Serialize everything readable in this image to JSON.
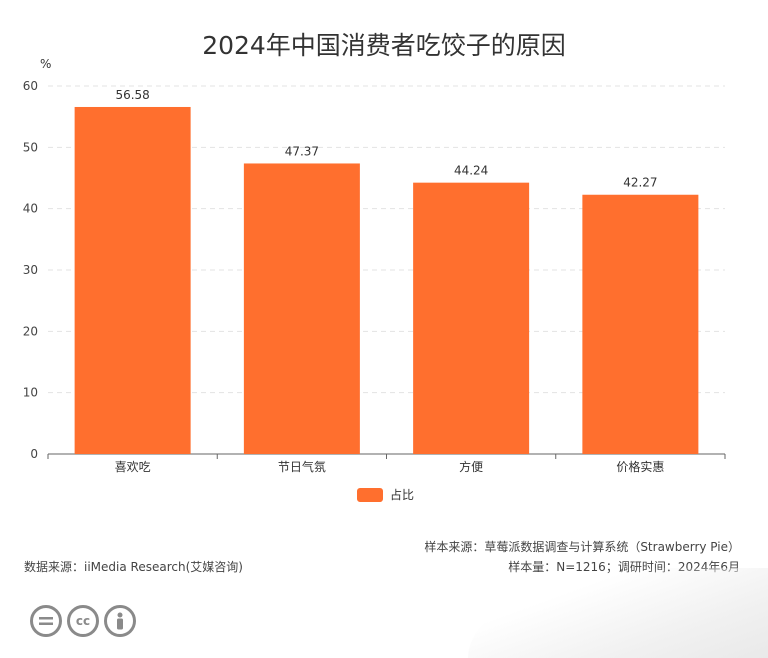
{
  "chart_data": {
    "type": "bar",
    "title": "2024年中国消费者吃饺子的原因",
    "ylabel": "%",
    "xlabel": "",
    "categories": [
      "喜欢吃",
      "节日气氛",
      "方便",
      "价格实惠"
    ],
    "series": [
      {
        "name": "占比",
        "values": [
          56.58,
          47.37,
          44.24,
          42.27
        ],
        "color": "#FF6F2E"
      }
    ],
    "ylim": [
      0,
      60
    ],
    "yticks": [
      0,
      10,
      20,
      30,
      40,
      50,
      60
    ],
    "grid": true,
    "legend": "bottom-center"
  },
  "footer": {
    "sample_source": "样本来源：草莓派数据调查与计算系统（Strawberry Pie）",
    "sample_size": "样本量：N=1216；调研时间：2024年6月",
    "data_source": "数据来源：iiMedia Research(艾媒咨询)"
  },
  "logo": {
    "cc_text": "cc",
    "icons": [
      "equals-icon",
      "cc-icon",
      "person-icon"
    ]
  }
}
